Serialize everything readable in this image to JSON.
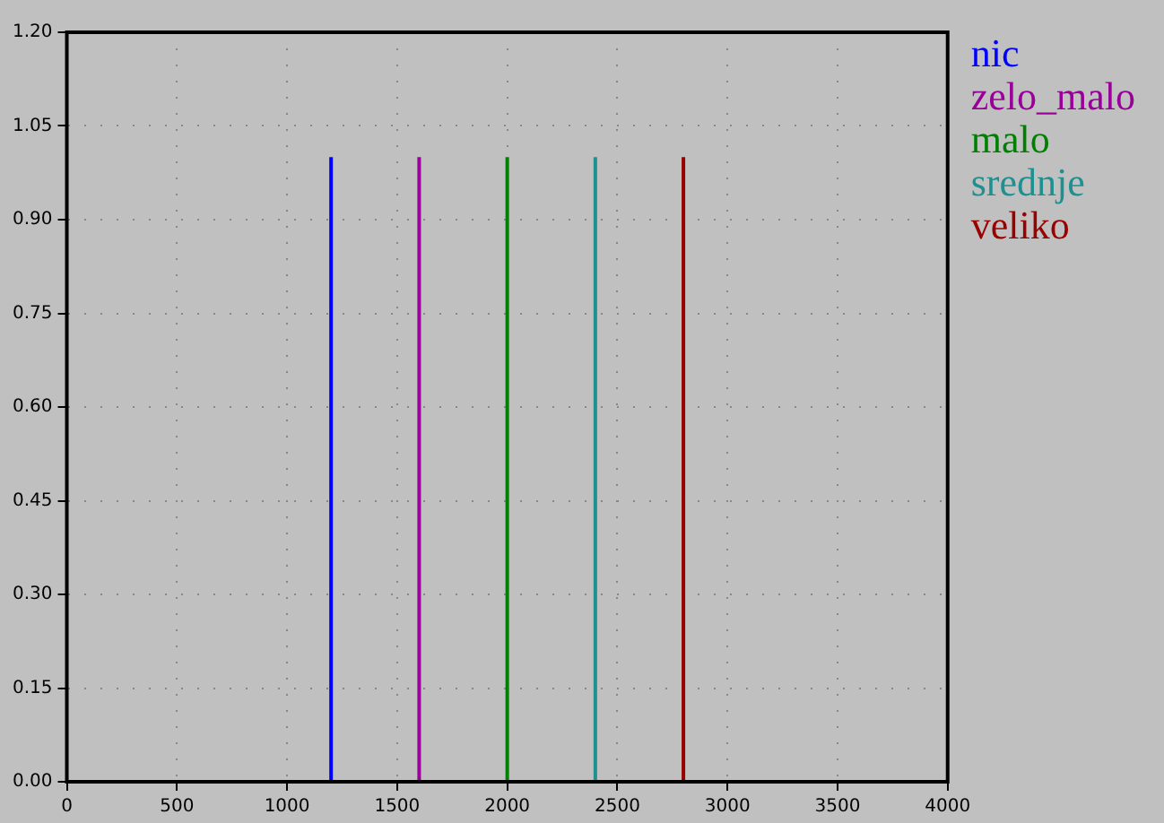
{
  "chart_data": {
    "type": "line",
    "xlim": [
      0,
      4000
    ],
    "xticks": [
      0,
      500,
      1000,
      1500,
      2000,
      2500,
      3000,
      3500,
      4000
    ],
    "ylim": [
      0,
      1.2
    ],
    "yticks": [
      {
        "value": 0,
        "label": "0.00"
      },
      {
        "value": 0.15,
        "label": "0.15"
      },
      {
        "value": 0.3,
        "label": "0.30"
      },
      {
        "value": 0.45,
        "label": "0.45"
      },
      {
        "value": 0.6,
        "label": "0.60"
      },
      {
        "value": 0.75,
        "label": "0.75"
      },
      {
        "value": 0.9,
        "label": "0.90"
      },
      {
        "value": 1.05,
        "label": "1.05"
      },
      {
        "value": 1.2,
        "label": "1.20"
      }
    ],
    "grid": true,
    "legend": "top right",
    "marker": "none",
    "line_style": "solid",
    "series": [
      {
        "name": "nic",
        "color": "#0000ff",
        "x": [
          1200,
          1200
        ],
        "values": [
          0,
          1
        ]
      },
      {
        "name": "zelo_malo",
        "color": "#990099",
        "x": [
          1600,
          1600
        ],
        "values": [
          0,
          1
        ]
      },
      {
        "name": "malo",
        "color": "#008000",
        "x": [
          2000,
          2000
        ],
        "values": [
          0,
          1
        ]
      },
      {
        "name": "srednje",
        "color": "#1f9090",
        "x": [
          2400,
          2400
        ],
        "values": [
          0,
          1
        ]
      },
      {
        "name": "veliko",
        "color": "#990000",
        "x": [
          2800,
          2800
        ],
        "values": [
          0,
          1
        ]
      }
    ]
  }
}
